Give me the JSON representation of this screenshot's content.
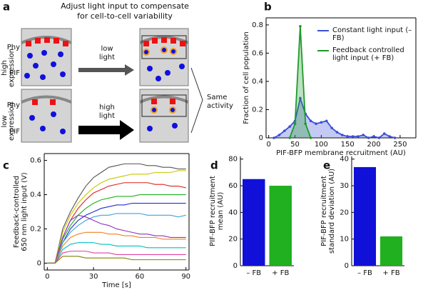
{
  "diagram": {
    "panel": "a",
    "title_lines": [
      "Adjust light input to compensate",
      "for cell-to-cell variability"
    ],
    "rows": [
      {
        "label_lines": [
          "high",
          "expression"
        ],
        "phy": "Phy",
        "pif": "PIF",
        "arrow_lines": [
          "low",
          "light"
        ]
      },
      {
        "label_lines": [
          "low",
          "expression"
        ],
        "phy": "Phy",
        "pif": "PIF",
        "arrow_lines": [
          "high",
          "light"
        ]
      }
    ],
    "outcome_lines": [
      "Same",
      "activity"
    ]
  },
  "chart_data": [
    {
      "panel": "b",
      "type": "line",
      "fill": true,
      "markers": true,
      "box": true,
      "xlabel": "PIF-BFP membrane recruitment (AU)",
      "ylabel_lines": [
        "Fraction of cell population"
      ],
      "x": [
        0,
        10,
        20,
        30,
        40,
        50,
        60,
        70,
        80,
        90,
        100,
        110,
        120,
        130,
        140,
        150,
        160,
        170,
        180,
        190,
        200,
        210,
        220,
        230,
        240
      ],
      "series": [
        {
          "name": "Constant light input (– FB)",
          "color": "#3b4fd8",
          "values": [
            null,
            0,
            0.02,
            0.05,
            0.08,
            0.12,
            0.28,
            0.17,
            0.12,
            0.1,
            0.11,
            0.12,
            0.07,
            0.04,
            0.02,
            0.01,
            0.01,
            0.01,
            0.02,
            0,
            0.01,
            0,
            0.03,
            0.01,
            0
          ]
        },
        {
          "name": "Feedback controlled light input (+ FB)",
          "color": "#1e9a2a",
          "values": [
            null,
            null,
            null,
            null,
            0,
            0.1,
            0.79,
            0.1,
            0,
            null,
            null,
            null,
            null,
            null,
            null,
            null,
            null,
            null,
            null,
            null,
            null,
            null,
            null,
            null,
            null
          ]
        }
      ],
      "xlim": [
        -5,
        280
      ],
      "xticks": [
        0,
        50,
        100,
        150,
        200,
        250
      ],
      "ylim": [
        0,
        0.85
      ],
      "yticks": [
        0,
        0.2,
        0.4,
        0.6,
        0.8
      ]
    },
    {
      "panel": "c",
      "type": "line",
      "fill": false,
      "markers": false,
      "box": true,
      "xlabel": "Time [s]",
      "ylabel_lines": [
        "Feedback-controlled",
        "650 nm light input (V)"
      ],
      "x": [
        0,
        5,
        10,
        15,
        20,
        25,
        30,
        35,
        40,
        45,
        50,
        55,
        60,
        65,
        70,
        75,
        80,
        85,
        90
      ],
      "series": [
        {
          "color": "#555555",
          "values": [
            0,
            0,
            0.2,
            0.3,
            0.38,
            0.45,
            0.5,
            0.53,
            0.56,
            0.57,
            0.58,
            0.58,
            0.58,
            0.57,
            0.57,
            0.56,
            0.56,
            0.55,
            0.55
          ]
        },
        {
          "color": "#c8c800",
          "values": [
            0,
            0,
            0.18,
            0.28,
            0.35,
            0.4,
            0.44,
            0.47,
            0.49,
            0.5,
            0.51,
            0.52,
            0.52,
            0.52,
            0.53,
            0.53,
            0.53,
            0.54,
            0.54
          ]
        },
        {
          "color": "#e02020",
          "values": [
            0,
            0,
            0.15,
            0.25,
            0.32,
            0.37,
            0.41,
            0.43,
            0.45,
            0.46,
            0.47,
            0.47,
            0.47,
            0.47,
            0.46,
            0.46,
            0.45,
            0.45,
            0.44
          ]
        },
        {
          "color": "#20b020",
          "values": [
            0,
            0,
            0.14,
            0.22,
            0.28,
            0.32,
            0.35,
            0.37,
            0.38,
            0.39,
            0.39,
            0.39,
            0.4,
            0.4,
            0.4,
            0.4,
            0.4,
            0.4,
            0.4
          ]
        },
        {
          "color": "#2030d0",
          "values": [
            0,
            0,
            0.12,
            0.2,
            0.25,
            0.28,
            0.3,
            0.32,
            0.33,
            0.34,
            0.34,
            0.35,
            0.35,
            0.35,
            0.35,
            0.35,
            0.35,
            0.35,
            0.35
          ]
        },
        {
          "color": "#40a0e0",
          "values": [
            0,
            0,
            0.12,
            0.18,
            0.22,
            0.25,
            0.27,
            0.28,
            0.28,
            0.29,
            0.29,
            0.29,
            0.29,
            0.28,
            0.28,
            0.28,
            0.28,
            0.27,
            0.28
          ]
        },
        {
          "color": "#9030c0",
          "values": [
            0,
            0,
            0.15,
            0.25,
            0.28,
            0.27,
            0.25,
            0.23,
            0.22,
            0.2,
            0.19,
            0.18,
            0.17,
            0.17,
            0.16,
            0.16,
            0.15,
            0.15,
            0.15
          ]
        },
        {
          "color": "#f08020",
          "values": [
            0,
            0,
            0.1,
            0.15,
            0.17,
            0.18,
            0.18,
            0.18,
            0.17,
            0.17,
            0.16,
            0.16,
            0.15,
            0.15,
            0.15,
            0.14,
            0.14,
            0.14,
            0.14
          ]
        },
        {
          "color": "#00c0c0",
          "values": [
            0,
            0,
            0.08,
            0.11,
            0.12,
            0.12,
            0.12,
            0.11,
            0.11,
            0.1,
            0.1,
            0.1,
            0.1,
            0.09,
            0.09,
            0.09,
            0.09,
            0.09,
            0.09
          ]
        },
        {
          "color": "#e040a0",
          "values": [
            0,
            0,
            0.06,
            0.07,
            0.07,
            0.07,
            0.06,
            0.06,
            0.06,
            0.05,
            0.05,
            0.05,
            0.05,
            0.05,
            0.05,
            0.05,
            0.05,
            0.05,
            0.05
          ]
        },
        {
          "color": "#808000",
          "values": [
            0,
            0,
            0.04,
            0.04,
            0.04,
            0.03,
            0.03,
            0.03,
            0.03,
            0.03,
            0.03,
            0.02,
            0.02,
            0.02,
            0.02,
            0.02,
            0.02,
            0.02,
            0.02
          ]
        }
      ],
      "xlim": [
        -2,
        92
      ],
      "xticks": [
        0,
        30,
        60,
        90
      ],
      "ylim": [
        -0.04,
        0.64
      ],
      "yticks": [
        0,
        0.2,
        0.4,
        0.6
      ]
    },
    {
      "panel": "d",
      "type": "bar",
      "ylabel_lines": [
        "PIF-BFP recruitment",
        "mean (AU)"
      ],
      "categories": [
        "– FB",
        "+ FB"
      ],
      "values": [
        65,
        60
      ],
      "colors": [
        "#1010d8",
        "#20b020"
      ],
      "ylim": [
        0,
        82
      ],
      "yticks": [
        0,
        20,
        40,
        60,
        80
      ]
    },
    {
      "panel": "e",
      "type": "bar",
      "ylabel_lines": [
        "PIF-BFP recruitment",
        "standard deviation (AU)"
      ],
      "categories": [
        "– FB",
        "+ FB"
      ],
      "values": [
        37,
        11
      ],
      "colors": [
        "#1010d8",
        "#20b020"
      ],
      "ylim": [
        0,
        41
      ],
      "yticks": [
        0,
        10,
        20,
        30,
        40
      ]
    }
  ]
}
